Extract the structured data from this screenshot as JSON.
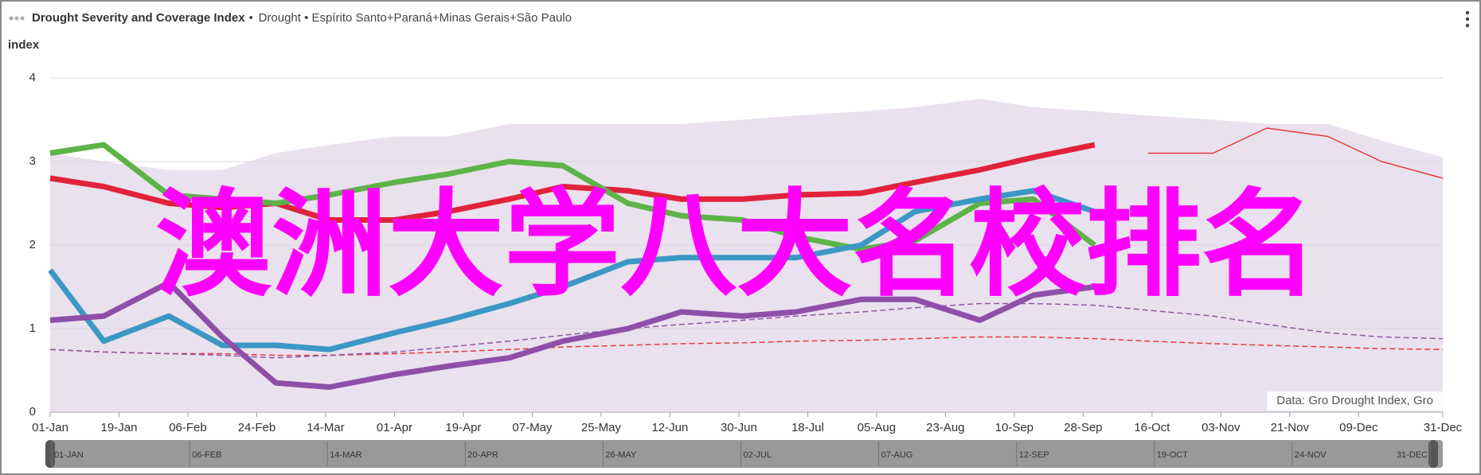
{
  "chart_data": {
    "type": "line",
    "title": "Drought Severity and Coverage Index",
    "subtitle": "Drought • Espírito Santo+Paraná+Minas Gerais+São Paulo",
    "y_label": "index",
    "watermark": "澳洲大学八大名校排名",
    "credit": "Data: Gro Drought Index, Gro",
    "x": [
      "01-Jan",
      "15-Jan",
      "01-Feb",
      "15-Feb",
      "01-Mar",
      "15-Mar",
      "01-Apr",
      "15-Apr",
      "01-May",
      "15-May",
      "01-Jun",
      "15-Jun",
      "01-Jul",
      "15-Jul",
      "01-Aug",
      "15-Aug",
      "01-Sep",
      "15-Sep",
      "01-Oct",
      "15-Oct",
      "01-Nov",
      "15-Nov",
      "01-Dec",
      "15-Dec",
      "31-Dec"
    ],
    "xlim": [
      "01-Jan",
      "31-Dec"
    ],
    "xticks": [
      "01-Jan",
      "19-Jan",
      "06-Feb",
      "24-Feb",
      "14-Mar",
      "01-Apr",
      "19-Apr",
      "07-May",
      "25-May",
      "12-Jun",
      "30-Jun",
      "18-Jul",
      "05-Aug",
      "23-Aug",
      "10-Sep",
      "28-Sep",
      "16-Oct",
      "03-Nov",
      "21-Nov",
      "09-Dec",
      "31-Dec"
    ],
    "ylim": [
      0,
      4
    ],
    "yticks": [
      0,
      1,
      2,
      3,
      4
    ],
    "grid": true,
    "series": [
      {
        "style": "area",
        "color": "#d9c9e0",
        "values": [
          3.1,
          3.0,
          2.9,
          2.9,
          3.1,
          3.2,
          3.3,
          3.3,
          3.45,
          3.45,
          3.45,
          3.45,
          3.5,
          3.55,
          3.6,
          3.65,
          3.75,
          3.65,
          3.6,
          3.55,
          3.5,
          3.45,
          3.45,
          3.25,
          3.05
        ]
      },
      {
        "style": "dashed",
        "color": "#e33b3b",
        "values": [
          0.75,
          0.72,
          0.7,
          0.7,
          0.68,
          0.68,
          0.7,
          0.72,
          0.75,
          0.78,
          0.8,
          0.82,
          0.83,
          0.85,
          0.86,
          0.88,
          0.9,
          0.9,
          0.88,
          0.85,
          0.82,
          0.8,
          0.78,
          0.76,
          0.75
        ]
      },
      {
        "style": "dashed",
        "color": "#8e57a8",
        "values": [
          0.75,
          0.72,
          0.7,
          0.68,
          0.65,
          0.68,
          0.72,
          0.78,
          0.85,
          0.92,
          1.0,
          1.05,
          1.1,
          1.15,
          1.2,
          1.25,
          1.3,
          1.3,
          1.28,
          1.22,
          1.15,
          1.05,
          0.95,
          0.9,
          0.88
        ]
      },
      {
        "style": "thin",
        "color": "#e33b3b",
        "values": [
          null,
          null,
          null,
          null,
          null,
          null,
          null,
          null,
          null,
          null,
          null,
          null,
          null,
          null,
          null,
          null,
          null,
          null,
          null,
          3.1,
          3.1,
          3.4,
          3.3,
          3.0,
          2.8
        ]
      },
      {
        "style": "thick",
        "color": "#e0233b",
        "values": [
          2.8,
          2.7,
          2.5,
          2.45,
          2.5,
          2.3,
          2.3,
          2.4,
          2.55,
          2.7,
          2.65,
          2.55,
          2.55,
          2.6,
          2.62,
          2.75,
          2.9,
          3.05,
          3.2,
          null,
          null,
          null,
          null,
          null,
          null
        ]
      },
      {
        "style": "thick",
        "color": "#5db349",
        "values": [
          3.1,
          3.2,
          2.6,
          2.55,
          2.5,
          2.6,
          2.75,
          2.85,
          3.0,
          2.95,
          2.5,
          2.35,
          2.3,
          2.1,
          1.95,
          2.05,
          2.5,
          2.55,
          2.0,
          null,
          null,
          null,
          null,
          null,
          null
        ]
      },
      {
        "style": "thick",
        "color": "#3b98c4",
        "values": [
          1.7,
          0.85,
          1.15,
          0.8,
          0.8,
          0.75,
          0.95,
          1.1,
          1.3,
          1.5,
          1.8,
          1.85,
          1.85,
          1.85,
          2.0,
          2.4,
          2.55,
          2.65,
          2.4,
          null,
          null,
          null,
          null,
          null,
          null
        ]
      },
      {
        "style": "thick",
        "color": "#8e4fa8",
        "values": [
          1.1,
          1.15,
          1.55,
          0.9,
          0.35,
          0.3,
          0.45,
          0.55,
          0.65,
          0.85,
          1.0,
          1.2,
          1.15,
          1.2,
          1.35,
          1.35,
          1.1,
          1.4,
          1.5,
          null,
          null,
          null,
          null,
          null,
          null
        ]
      }
    ],
    "navigator_labels": [
      "01-JAN",
      "06-FEB",
      "14-MAR",
      "20-APR",
      "26-MAY",
      "02-JUL",
      "07-AUG",
      "12-SEP",
      "19-OCT",
      "24-NOV",
      "31-DEC"
    ]
  }
}
